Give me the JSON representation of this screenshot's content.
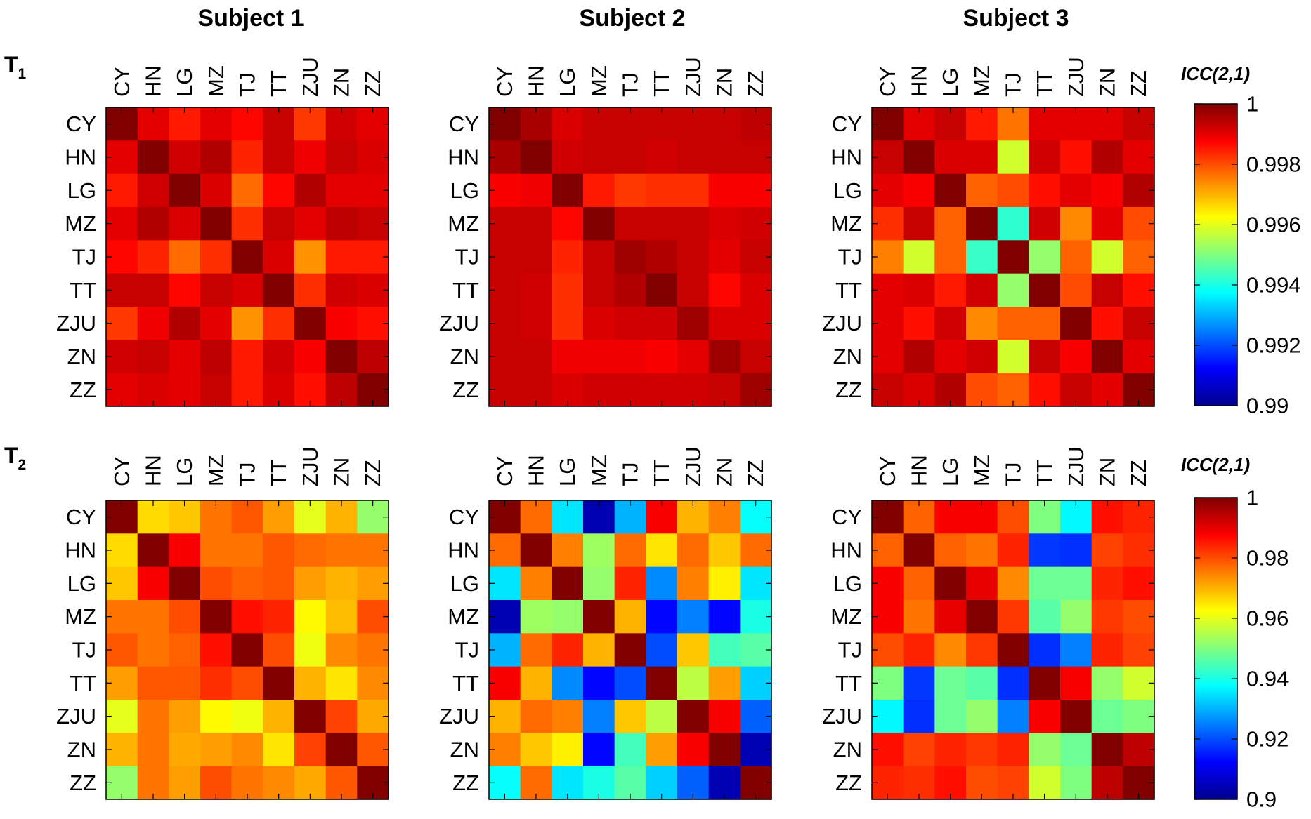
{
  "chart_data": [
    {
      "type": "heatmap",
      "panel": "T1 / Subject 1",
      "title": "Subject 1",
      "row_label": "T1",
      "categories": [
        "CY",
        "HN",
        "LG",
        "MZ",
        "TJ",
        "TT",
        "ZJU",
        "ZN",
        "ZZ"
      ],
      "colorbar_range": [
        0.99,
        1
      ],
      "values": [
        [
          1.0,
          0.999,
          0.9985,
          0.999,
          0.9987,
          0.9993,
          0.9982,
          0.9992,
          0.999
        ],
        [
          0.999,
          1.0,
          0.9992,
          0.9995,
          0.9984,
          0.9993,
          0.9989,
          0.9993,
          0.9991
        ],
        [
          0.9985,
          0.9992,
          1.0,
          0.9991,
          0.9977,
          0.9987,
          0.9995,
          0.999,
          0.999
        ],
        [
          0.999,
          0.9995,
          0.9991,
          1.0,
          0.9983,
          0.9993,
          0.999,
          0.9994,
          0.9993
        ],
        [
          0.9987,
          0.9984,
          0.9977,
          0.9983,
          1.0,
          0.9991,
          0.9973,
          0.9985,
          0.9985
        ],
        [
          0.9993,
          0.9993,
          0.9987,
          0.9993,
          0.9991,
          1.0,
          0.9983,
          0.9992,
          0.9991
        ],
        [
          0.9982,
          0.9989,
          0.9995,
          0.999,
          0.9973,
          0.9983,
          1.0,
          0.9988,
          0.9986
        ],
        [
          0.9992,
          0.9993,
          0.999,
          0.9994,
          0.9985,
          0.9992,
          0.9988,
          1.0,
          0.9994
        ],
        [
          0.999,
          0.9991,
          0.999,
          0.9993,
          0.9985,
          0.9991,
          0.9986,
          0.9994,
          1.0
        ]
      ]
    },
    {
      "type": "heatmap",
      "panel": "T1 / Subject 2",
      "title": "Subject 2",
      "row_label": "T1",
      "categories": [
        "CY",
        "HN",
        "LG",
        "MZ",
        "TJ",
        "TT",
        "ZJU",
        "ZN",
        "ZZ"
      ],
      "colorbar_range": [
        0.99,
        1
      ],
      "values": [
        [
          1.0,
          0.9996,
          0.9991,
          0.9993,
          0.9993,
          0.9993,
          0.9993,
          0.9993,
          0.9994
        ],
        [
          0.9996,
          1.0,
          0.9992,
          0.9993,
          0.9993,
          0.9992,
          0.9993,
          0.9993,
          0.9993
        ],
        [
          0.9988,
          0.9989,
          1.0,
          0.9985,
          0.9982,
          0.9983,
          0.9983,
          0.9988,
          0.9988
        ],
        [
          0.9993,
          0.9993,
          0.9987,
          1.0,
          0.9993,
          0.9993,
          0.9993,
          0.9991,
          0.9992
        ],
        [
          0.9993,
          0.9993,
          0.9984,
          0.9993,
          0.9997,
          0.9995,
          0.9993,
          0.999,
          0.9993
        ],
        [
          0.9993,
          0.9992,
          0.9983,
          0.9993,
          0.9995,
          1.0,
          0.9993,
          0.9987,
          0.9991
        ],
        [
          0.9993,
          0.9992,
          0.9983,
          0.9991,
          0.9992,
          0.9992,
          0.9997,
          0.9991,
          0.9991
        ],
        [
          0.9993,
          0.9993,
          0.9989,
          0.9989,
          0.9989,
          0.9988,
          0.999,
          0.9997,
          0.9993
        ],
        [
          0.9993,
          0.9993,
          0.9991,
          0.9992,
          0.9992,
          0.9992,
          0.9992,
          0.9993,
          0.9997
        ]
      ]
    },
    {
      "type": "heatmap",
      "panel": "T1 / Subject 3",
      "title": "Subject 3",
      "row_label": "T1",
      "categories": [
        "CY",
        "HN",
        "LG",
        "MZ",
        "TJ",
        "TT",
        "ZJU",
        "ZN",
        "ZZ"
      ],
      "colorbar_range": [
        0.99,
        1
      ],
      "values": [
        [
          1.0,
          0.999,
          0.9993,
          0.9985,
          0.9976,
          0.999,
          0.999,
          0.999,
          0.9993
        ],
        [
          0.9993,
          1.0,
          0.9991,
          0.9991,
          0.9958,
          0.9992,
          0.9986,
          0.9995,
          0.999
        ],
        [
          0.999,
          0.9988,
          1.0,
          0.9978,
          0.998,
          0.9986,
          0.999,
          0.9988,
          0.9995
        ],
        [
          0.9983,
          0.9993,
          0.9978,
          1.0,
          0.9942,
          0.9992,
          0.9974,
          0.999,
          0.998
        ],
        [
          0.9975,
          0.9958,
          0.9978,
          0.9943,
          1.0,
          0.9952,
          0.9978,
          0.9958,
          0.9978
        ],
        [
          0.999,
          0.9991,
          0.9985,
          0.9992,
          0.9952,
          1.0,
          0.998,
          0.9993,
          0.9986
        ],
        [
          0.999,
          0.9986,
          0.9992,
          0.9974,
          0.9978,
          0.9978,
          1.0,
          0.9986,
          0.9993
        ],
        [
          0.999,
          0.9995,
          0.999,
          0.9992,
          0.9958,
          0.9993,
          0.9988,
          1.0,
          0.999
        ],
        [
          0.9993,
          0.9991,
          0.9995,
          0.998,
          0.9978,
          0.9986,
          0.9993,
          0.999,
          1.0
        ]
      ]
    },
    {
      "type": "heatmap",
      "panel": "T2 / Subject 1",
      "title": "Subject 1",
      "row_label": "T2",
      "categories": [
        "CY",
        "HN",
        "LG",
        "MZ",
        "TJ",
        "TT",
        "ZJU",
        "ZN",
        "ZZ"
      ],
      "colorbar_range": [
        0.9,
        1
      ],
      "values": [
        [
          1.0,
          0.966,
          0.968,
          0.976,
          0.979,
          0.972,
          0.96,
          0.97,
          0.952
        ],
        [
          0.966,
          1.0,
          0.988,
          0.976,
          0.976,
          0.979,
          0.977,
          0.976,
          0.976
        ],
        [
          0.968,
          0.988,
          1.0,
          0.98,
          0.978,
          0.979,
          0.972,
          0.97,
          0.972
        ],
        [
          0.976,
          0.976,
          0.98,
          1.0,
          0.986,
          0.984,
          0.963,
          0.969,
          0.98
        ],
        [
          0.979,
          0.976,
          0.978,
          0.986,
          1.0,
          0.98,
          0.961,
          0.974,
          0.976
        ],
        [
          0.972,
          0.979,
          0.979,
          0.983,
          0.98,
          1.0,
          0.97,
          0.965,
          0.974
        ],
        [
          0.96,
          0.976,
          0.972,
          0.963,
          0.961,
          0.97,
          1.0,
          0.981,
          0.971
        ],
        [
          0.97,
          0.976,
          0.971,
          0.972,
          0.974,
          0.965,
          0.981,
          1.0,
          0.979
        ],
        [
          0.952,
          0.976,
          0.972,
          0.98,
          0.976,
          0.974,
          0.971,
          0.979,
          1.0
        ]
      ]
    },
    {
      "type": "heatmap",
      "panel": "T2 / Subject 2",
      "title": "Subject 2",
      "row_label": "T2",
      "categories": [
        "CY",
        "HN",
        "LG",
        "MZ",
        "TJ",
        "TT",
        "ZJU",
        "ZN",
        "ZZ"
      ],
      "colorbar_range": [
        0.9,
        1
      ],
      "values": [
        [
          1.0,
          0.977,
          0.935,
          0.905,
          0.93,
          0.988,
          0.97,
          0.975,
          0.938
        ],
        [
          0.977,
          1.0,
          0.975,
          0.953,
          0.977,
          0.965,
          0.977,
          0.968,
          0.977
        ],
        [
          0.935,
          0.975,
          1.0,
          0.952,
          0.984,
          0.926,
          0.975,
          0.964,
          0.935
        ],
        [
          0.905,
          0.953,
          0.952,
          1.0,
          0.97,
          0.913,
          0.925,
          0.913,
          0.94
        ],
        [
          0.93,
          0.977,
          0.984,
          0.97,
          1.0,
          0.92,
          0.968,
          0.944,
          0.946
        ],
        [
          0.988,
          0.97,
          0.926,
          0.913,
          0.92,
          1.0,
          0.956,
          0.972,
          0.933
        ],
        [
          0.97,
          0.977,
          0.975,
          0.925,
          0.968,
          0.956,
          1.0,
          0.988,
          0.922
        ],
        [
          0.975,
          0.968,
          0.964,
          0.913,
          0.944,
          0.972,
          0.988,
          1.0,
          0.905
        ],
        [
          0.938,
          0.977,
          0.935,
          0.94,
          0.946,
          0.933,
          0.922,
          0.905,
          1.0
        ]
      ]
    },
    {
      "type": "heatmap",
      "panel": "T2 / Subject 3",
      "title": "Subject 3",
      "row_label": "T2",
      "categories": [
        "CY",
        "HN",
        "LG",
        "MZ",
        "TJ",
        "TT",
        "ZJU",
        "ZN",
        "ZZ"
      ],
      "colorbar_range": [
        0.9,
        1
      ],
      "values": [
        [
          1.0,
          0.978,
          0.988,
          0.988,
          0.98,
          0.95,
          0.937,
          0.986,
          0.984
        ],
        [
          0.978,
          1.0,
          0.978,
          0.976,
          0.984,
          0.918,
          0.917,
          0.981,
          0.983
        ],
        [
          0.988,
          0.978,
          1.0,
          0.99,
          0.974,
          0.948,
          0.948,
          0.984,
          0.986
        ],
        [
          0.988,
          0.976,
          0.99,
          1.0,
          0.982,
          0.946,
          0.952,
          0.982,
          0.98
        ],
        [
          0.98,
          0.984,
          0.974,
          0.982,
          1.0,
          0.917,
          0.925,
          0.984,
          0.981
        ],
        [
          0.95,
          0.918,
          0.948,
          0.946,
          0.917,
          1.0,
          0.988,
          0.952,
          0.958
        ],
        [
          0.937,
          0.917,
          0.948,
          0.952,
          0.925,
          0.988,
          1.0,
          0.948,
          0.95
        ],
        [
          0.986,
          0.981,
          0.984,
          0.982,
          0.984,
          0.952,
          0.948,
          1.0,
          0.994
        ],
        [
          0.984,
          0.983,
          0.986,
          0.98,
          0.981,
          0.958,
          0.95,
          0.994,
          1.0
        ]
      ]
    }
  ],
  "column_titles": [
    "Subject 1",
    "Subject 2",
    "Subject 3"
  ],
  "row_labels": [
    {
      "letter": "T",
      "subscript": "1"
    },
    {
      "letter": "T",
      "subscript": "2"
    }
  ],
  "colorbars": [
    {
      "title": "ICC(2,1)",
      "ticks": [
        "1",
        "0.998",
        "0.996",
        "0.994",
        "0.992",
        "0.99"
      ],
      "range": [
        0.99,
        1
      ]
    },
    {
      "title": "ICC(2,1)",
      "ticks": [
        "1",
        "0.98",
        "0.96",
        "0.94",
        "0.92",
        "0.9"
      ],
      "range": [
        0.9,
        1
      ]
    }
  ]
}
